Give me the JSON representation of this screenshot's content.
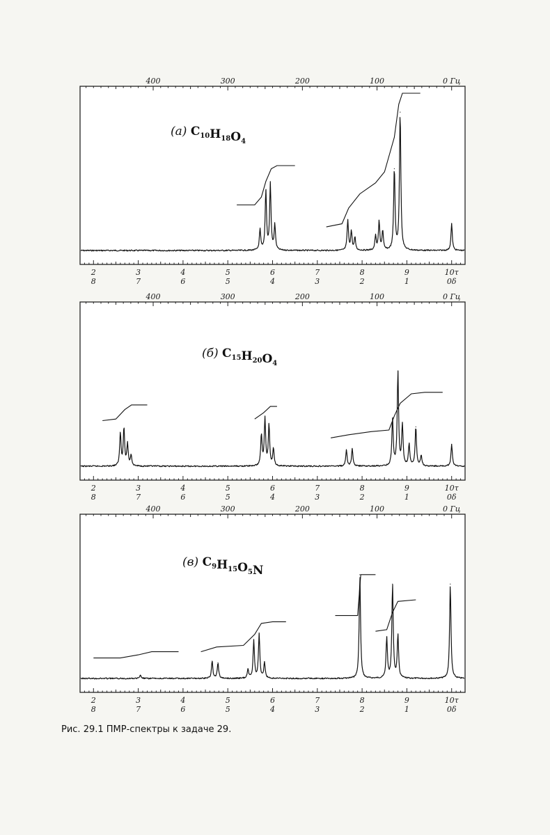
{
  "caption": "Рис. 29.1 ПМР-спектры к задаче 29.",
  "chart_data": [
    {
      "type": "line",
      "label": "(а)",
      "formula": [
        [
          "C",
          ""
        ],
        [
          "",
          "10"
        ],
        [
          "H",
          ""
        ],
        [
          "",
          "18"
        ],
        [
          "O",
          ""
        ],
        [
          "",
          "4"
        ]
      ],
      "formula_text": "C10H18O4",
      "hz_ticks": [
        "400",
        "300",
        "200",
        "100",
        "0 Гц"
      ],
      "hz_values": [
        400,
        300,
        200,
        100,
        0
      ],
      "tau_ticks": [
        "2",
        "3",
        "4",
        "5",
        "6",
        "7",
        "8",
        "9",
        "10τ"
      ],
      "delta_ticks": [
        "8",
        "7",
        "6",
        "5",
        "4",
        "3",
        "2",
        "1",
        "0δ"
      ],
      "xlim_tau": [
        1.7,
        10.3
      ],
      "peaks": [
        {
          "tau": 5.72,
          "height": 0.13
        },
        {
          "tau": 5.85,
          "height": 0.38
        },
        {
          "tau": 5.95,
          "height": 0.42
        },
        {
          "tau": 6.05,
          "height": 0.16
        },
        {
          "tau": 7.68,
          "height": 0.19
        },
        {
          "tau": 7.76,
          "height": 0.12
        },
        {
          "tau": 7.84,
          "height": 0.08
        },
        {
          "tau": 8.3,
          "height": 0.09
        },
        {
          "tau": 8.38,
          "height": 0.18
        },
        {
          "tau": 8.46,
          "height": 0.12
        },
        {
          "tau": 8.72,
          "height": 0.52
        },
        {
          "tau": 8.85,
          "height": 0.88
        },
        {
          "tau": 10.0,
          "height": 0.17
        }
      ],
      "integral": [
        [
          5.2,
          0.29
        ],
        [
          5.6,
          0.29
        ],
        [
          5.75,
          0.34
        ],
        [
          5.85,
          0.44
        ],
        [
          5.97,
          0.52
        ],
        [
          6.1,
          0.54
        ],
        [
          6.5,
          0.54
        ]
      ],
      "integral2": [
        [
          7.2,
          0.15
        ],
        [
          7.55,
          0.17
        ],
        [
          7.7,
          0.27
        ],
        [
          7.95,
          0.36
        ],
        [
          8.3,
          0.43
        ],
        [
          8.5,
          0.5
        ],
        [
          8.62,
          0.62
        ],
        [
          8.72,
          0.72
        ],
        [
          8.82,
          0.93
        ],
        [
          8.9,
          1.0
        ],
        [
          9.3,
          1.0
        ]
      ]
    },
    {
      "type": "line",
      "label": "(б)",
      "formula": [
        [
          "C",
          ""
        ],
        [
          "",
          "15"
        ],
        [
          "H",
          ""
        ],
        [
          "",
          "20"
        ],
        [
          "O",
          ""
        ],
        [
          "",
          "4"
        ]
      ],
      "formula_text": "C15H20O4",
      "hz_ticks": [
        "400",
        "300",
        "200",
        "100",
        "0 Гц"
      ],
      "hz_values": [
        400,
        300,
        200,
        100,
        0
      ],
      "tau_ticks": [
        "2",
        "3",
        "4",
        "5",
        "6",
        "7",
        "8",
        "9",
        "10τ"
      ],
      "delta_ticks": [
        "8",
        "7",
        "6",
        "5",
        "4",
        "3",
        "2",
        "1",
        "0δ"
      ],
      "xlim_tau": [
        1.7,
        10.3
      ],
      "peaks": [
        {
          "tau": 2.6,
          "height": 0.21
        },
        {
          "tau": 2.68,
          "height": 0.24
        },
        {
          "tau": 2.76,
          "height": 0.14
        },
        {
          "tau": 2.84,
          "height": 0.07
        },
        {
          "tau": 5.75,
          "height": 0.2
        },
        {
          "tau": 5.83,
          "height": 0.3
        },
        {
          "tau": 5.92,
          "height": 0.26
        },
        {
          "tau": 6.02,
          "height": 0.11
        },
        {
          "tau": 7.65,
          "height": 0.1
        },
        {
          "tau": 7.78,
          "height": 0.11
        },
        {
          "tau": 8.68,
          "height": 0.3
        },
        {
          "tau": 8.8,
          "height": 0.6
        },
        {
          "tau": 8.9,
          "height": 0.26
        },
        {
          "tau": 9.05,
          "height": 0.14
        },
        {
          "tau": 9.2,
          "height": 0.25
        },
        {
          "tau": 9.32,
          "height": 0.07
        },
        {
          "tau": 10.0,
          "height": 0.14
        }
      ],
      "integral": [
        [
          2.2,
          0.29
        ],
        [
          2.5,
          0.3
        ],
        [
          2.7,
          0.36
        ],
        [
          2.85,
          0.39
        ],
        [
          3.2,
          0.39
        ]
      ],
      "integral2": [
        [
          5.6,
          0.3
        ],
        [
          5.8,
          0.34
        ],
        [
          5.95,
          0.38
        ],
        [
          6.1,
          0.38
        ]
      ],
      "integral3": [
        [
          7.3,
          0.18
        ],
        [
          7.7,
          0.2
        ],
        [
          8.2,
          0.22
        ],
        [
          8.6,
          0.23
        ],
        [
          8.72,
          0.32
        ],
        [
          8.85,
          0.4
        ],
        [
          9.1,
          0.46
        ],
        [
          9.4,
          0.47
        ],
        [
          9.8,
          0.47
        ]
      ]
    },
    {
      "type": "line",
      "label": "(в)",
      "formula": [
        [
          "C",
          ""
        ],
        [
          "",
          "9"
        ],
        [
          "H",
          ""
        ],
        [
          "",
          "15"
        ],
        [
          "O",
          ""
        ],
        [
          "",
          "5"
        ],
        [
          "N",
          ""
        ]
      ],
      "formula_text": "C9H15O5N",
      "hz_ticks": [
        "400",
        "300",
        "200",
        "100",
        "0 Гц"
      ],
      "hz_values": [
        400,
        300,
        200,
        100,
        0
      ],
      "tau_ticks": [
        "2",
        "3",
        "4",
        "5",
        "6",
        "7",
        "8",
        "9",
        "10τ"
      ],
      "delta_ticks": [
        "8",
        "7",
        "6",
        "5",
        "4",
        "3",
        "2",
        "1",
        "0δ"
      ],
      "xlim_tau": [
        1.7,
        10.3
      ],
      "peaks": [
        {
          "tau": 3.05,
          "height": 0.02
        },
        {
          "tau": 4.65,
          "height": 0.11
        },
        {
          "tau": 4.78,
          "height": 0.1
        },
        {
          "tau": 5.45,
          "height": 0.06
        },
        {
          "tau": 5.58,
          "height": 0.24
        },
        {
          "tau": 5.7,
          "height": 0.28
        },
        {
          "tau": 5.82,
          "height": 0.1
        },
        {
          "tau": 7.95,
          "height": 0.66
        },
        {
          "tau": 8.55,
          "height": 0.26
        },
        {
          "tau": 8.68,
          "height": 0.6
        },
        {
          "tau": 8.8,
          "height": 0.27
        },
        {
          "tau": 9.97,
          "height": 0.6
        }
      ],
      "integral": [
        [
          2.0,
          0.13
        ],
        [
          2.6,
          0.13
        ],
        [
          3.0,
          0.15
        ],
        [
          3.3,
          0.17
        ],
        [
          3.9,
          0.17
        ]
      ],
      "integral2": [
        [
          4.4,
          0.17
        ],
        [
          4.75,
          0.2
        ],
        [
          5.35,
          0.21
        ],
        [
          5.6,
          0.28
        ],
        [
          5.75,
          0.35
        ],
        [
          6.0,
          0.36
        ],
        [
          6.3,
          0.36
        ]
      ],
      "integral3": [
        [
          7.4,
          0.4
        ],
        [
          7.9,
          0.4
        ],
        [
          7.97,
          0.66
        ],
        [
          8.3,
          0.66
        ]
      ],
      "integral4": [
        [
          8.3,
          0.3
        ],
        [
          8.55,
          0.31
        ],
        [
          8.68,
          0.42
        ],
        [
          8.8,
          0.49
        ],
        [
          9.2,
          0.5
        ]
      ]
    }
  ]
}
